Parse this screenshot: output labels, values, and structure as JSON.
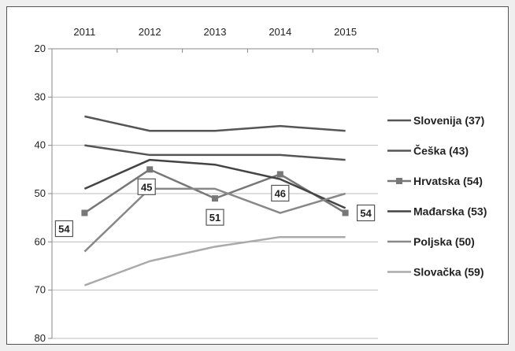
{
  "chart_data": {
    "type": "line",
    "x": [
      "2011",
      "2012",
      "2013",
      "2014",
      "2015"
    ],
    "y_ticks": [
      20,
      30,
      40,
      50,
      60,
      70,
      80
    ],
    "ylim": [
      20,
      80
    ],
    "y_inverted": true,
    "x_axis_position": "top",
    "grid": "horizontal",
    "legend_position": "right",
    "series": [
      {
        "name": "Slovenija (37)",
        "values": [
          34,
          37,
          37,
          36,
          37
        ],
        "color": "#555555",
        "marker": "none"
      },
      {
        "name": "Češka (43)",
        "values": [
          40,
          42,
          42,
          42,
          43
        ],
        "color": "#555555",
        "marker": "none"
      },
      {
        "name": "Hrvatska (54)",
        "values": [
          54,
          45,
          51,
          46,
          54
        ],
        "color": "#777777",
        "marker": "square"
      },
      {
        "name": "Mađarska (53)",
        "values": [
          49,
          43,
          44,
          47,
          53
        ],
        "color": "#444444",
        "marker": "none"
      },
      {
        "name": "Poljska (50)",
        "values": [
          62,
          49,
          49,
          54,
          50
        ],
        "color": "#888888",
        "marker": "none"
      },
      {
        "name": "Slovačka (59)",
        "values": [
          69,
          64,
          61,
          59,
          59
        ],
        "color": "#aaaaaa",
        "marker": "none"
      }
    ],
    "data_labels": [
      {
        "series": "Hrvatska (54)",
        "x": "2011",
        "text": "54"
      },
      {
        "series": "Hrvatska (54)",
        "x": "2012",
        "text": "45"
      },
      {
        "series": "Hrvatska (54)",
        "x": "2013",
        "text": "51"
      },
      {
        "series": "Hrvatska (54)",
        "x": "2014",
        "text": "46"
      },
      {
        "series": "Hrvatska (54)",
        "x": "2015",
        "text": "54"
      }
    ]
  }
}
